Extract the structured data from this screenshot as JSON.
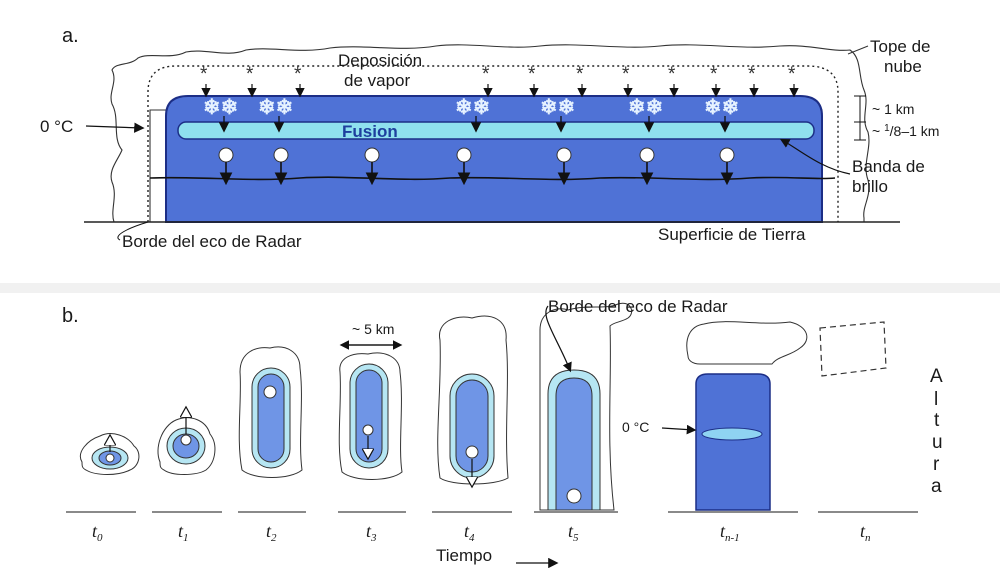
{
  "panel_a": {
    "letter": "a.",
    "deposition_line1": "Deposición",
    "deposition_line2": "de vapor",
    "cloud_top_line1": "Tope de",
    "cloud_top_line2": "nube",
    "zero_c": "0 °C",
    "fusion": "Fusion",
    "dim_1km": "~ 1 km",
    "dim_eighth_prefix": "~ ",
    "dim_eighth_num": "1",
    "dim_eighth_rest": "/8–1 km",
    "bright_band_line1": "Banda de",
    "bright_band_line2": "brillo",
    "radar_edge": "Borde del eco de Radar",
    "ground_surface": "Superficie de Tierra",
    "snow_symbol": "*",
    "snow_cluster_symbol": "❄❄",
    "colors": {
      "echo_dark": "#4f72d6",
      "echo_outline": "#1c2e86",
      "melting_band": "#8fe0ee"
    }
  },
  "panel_b": {
    "letter": "b.",
    "scale": "~ 5 km",
    "radar_edge": "Borde del eco de Radar",
    "zero_c": "0 °C",
    "time_label": "Tiempo",
    "altura_letters": [
      "A",
      "l",
      "t",
      "u",
      "r",
      "a"
    ],
    "times": [
      {
        "t": "t",
        "sub": "0"
      },
      {
        "t": "t",
        "sub": "1"
      },
      {
        "t": "t",
        "sub": "2"
      },
      {
        "t": "t",
        "sub": "3"
      },
      {
        "t": "t",
        "sub": "4"
      },
      {
        "t": "t",
        "sub": "5"
      },
      {
        "t": "t",
        "sub": "n-1"
      },
      {
        "t": "t",
        "sub": "n"
      }
    ],
    "colors": {
      "echo_light": "#6f95e6",
      "echo_halo": "#b6e6f3",
      "echo_dark": "#4f72d6"
    }
  }
}
